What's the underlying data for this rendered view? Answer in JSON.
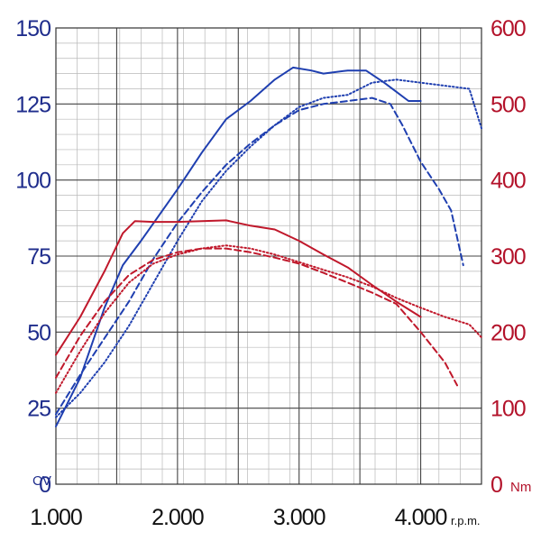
{
  "chart_data": {
    "type": "line",
    "x_ticks": [
      "1.000",
      "2.000",
      "3.000",
      "4.000"
    ],
    "x_values": [
      1000,
      2000,
      3000,
      4000
    ],
    "x_unit": "r.p.m.",
    "xlim": [
      1000,
      4500
    ],
    "y_left": {
      "ticks": [
        "0",
        "25",
        "50",
        "75",
        "100",
        "125",
        "150"
      ],
      "values": [
        0,
        25,
        50,
        75,
        100,
        125,
        150
      ],
      "unit": "CV",
      "ylim": [
        0,
        150
      ],
      "color": "#1f3fb0"
    },
    "y_right": {
      "ticks": [
        "0",
        "100",
        "200",
        "300",
        "400",
        "500",
        "600"
      ],
      "values": [
        0,
        100,
        200,
        300,
        400,
        500,
        600
      ],
      "unit": "Nm",
      "ylim": [
        0,
        600
      ],
      "color": "#c0182b"
    },
    "grid": true,
    "series": [
      {
        "axis": "left",
        "color": "#1f3fb0",
        "style": "solid",
        "points": [
          [
            1000,
            19
          ],
          [
            1200,
            35
          ],
          [
            1400,
            58
          ],
          [
            1550,
            72
          ],
          [
            1700,
            80
          ],
          [
            2000,
            97
          ],
          [
            2200,
            109
          ],
          [
            2400,
            120
          ],
          [
            2600,
            126
          ],
          [
            2800,
            133
          ],
          [
            2950,
            137
          ],
          [
            3100,
            136
          ],
          [
            3200,
            135
          ],
          [
            3400,
            136
          ],
          [
            3550,
            136
          ],
          [
            3700,
            132
          ],
          [
            3800,
            129
          ],
          [
            3900,
            126
          ],
          [
            4000,
            126
          ]
        ]
      },
      {
        "axis": "left",
        "color": "#1f3fb0",
        "style": "dashed",
        "points": [
          [
            1000,
            23
          ],
          [
            1200,
            36
          ],
          [
            1400,
            48
          ],
          [
            1600,
            60
          ],
          [
            1800,
            74
          ],
          [
            2000,
            86
          ],
          [
            2200,
            96
          ],
          [
            2400,
            105
          ],
          [
            2600,
            112
          ],
          [
            2800,
            118
          ],
          [
            3000,
            123
          ],
          [
            3200,
            125
          ],
          [
            3400,
            126
          ],
          [
            3600,
            127
          ],
          [
            3750,
            125
          ],
          [
            3850,
            118
          ],
          [
            4000,
            106
          ],
          [
            4150,
            97
          ],
          [
            4250,
            90
          ],
          [
            4350,
            72
          ]
        ]
      },
      {
        "axis": "left",
        "color": "#1f3fb0",
        "style": "dotted",
        "points": [
          [
            1000,
            22
          ],
          [
            1200,
            30
          ],
          [
            1400,
            40
          ],
          [
            1600,
            52
          ],
          [
            1800,
            66
          ],
          [
            2000,
            80
          ],
          [
            2200,
            93
          ],
          [
            2400,
            103
          ],
          [
            2600,
            111
          ],
          [
            2800,
            118
          ],
          [
            3000,
            124
          ],
          [
            3200,
            127
          ],
          [
            3400,
            128
          ],
          [
            3600,
            132
          ],
          [
            3800,
            133
          ],
          [
            4000,
            132
          ],
          [
            4200,
            131
          ],
          [
            4400,
            130
          ],
          [
            4500,
            117
          ]
        ]
      },
      {
        "axis": "right",
        "color": "#c0182b",
        "style": "solid",
        "points": [
          [
            1000,
            170
          ],
          [
            1200,
            220
          ],
          [
            1400,
            280
          ],
          [
            1550,
            330
          ],
          [
            1650,
            346
          ],
          [
            1800,
            345
          ],
          [
            2000,
            345
          ],
          [
            2200,
            346
          ],
          [
            2400,
            347
          ],
          [
            2600,
            340
          ],
          [
            2800,
            335
          ],
          [
            3000,
            320
          ],
          [
            3200,
            302
          ],
          [
            3400,
            285
          ],
          [
            3600,
            262
          ],
          [
            3800,
            240
          ],
          [
            4000,
            220
          ]
        ]
      },
      {
        "axis": "right",
        "color": "#c0182b",
        "style": "dashed",
        "points": [
          [
            1000,
            140
          ],
          [
            1200,
            195
          ],
          [
            1400,
            240
          ],
          [
            1600,
            275
          ],
          [
            1800,
            295
          ],
          [
            2000,
            305
          ],
          [
            2200,
            310
          ],
          [
            2400,
            310
          ],
          [
            2600,
            305
          ],
          [
            2800,
            298
          ],
          [
            3000,
            290
          ],
          [
            3200,
            278
          ],
          [
            3400,
            265
          ],
          [
            3600,
            252
          ],
          [
            3800,
            237
          ],
          [
            4000,
            200
          ],
          [
            4200,
            160
          ],
          [
            4300,
            130
          ]
        ]
      },
      {
        "axis": "right",
        "color": "#c0182b",
        "style": "dotted",
        "points": [
          [
            1000,
            120
          ],
          [
            1200,
            175
          ],
          [
            1400,
            225
          ],
          [
            1600,
            265
          ],
          [
            1800,
            290
          ],
          [
            2000,
            302
          ],
          [
            2200,
            310
          ],
          [
            2400,
            314
          ],
          [
            2600,
            310
          ],
          [
            2800,
            302
          ],
          [
            3000,
            292
          ],
          [
            3200,
            282
          ],
          [
            3400,
            272
          ],
          [
            3600,
            260
          ],
          [
            3800,
            245
          ],
          [
            4000,
            232
          ],
          [
            4200,
            220
          ],
          [
            4400,
            210
          ],
          [
            4500,
            193
          ]
        ]
      }
    ]
  }
}
